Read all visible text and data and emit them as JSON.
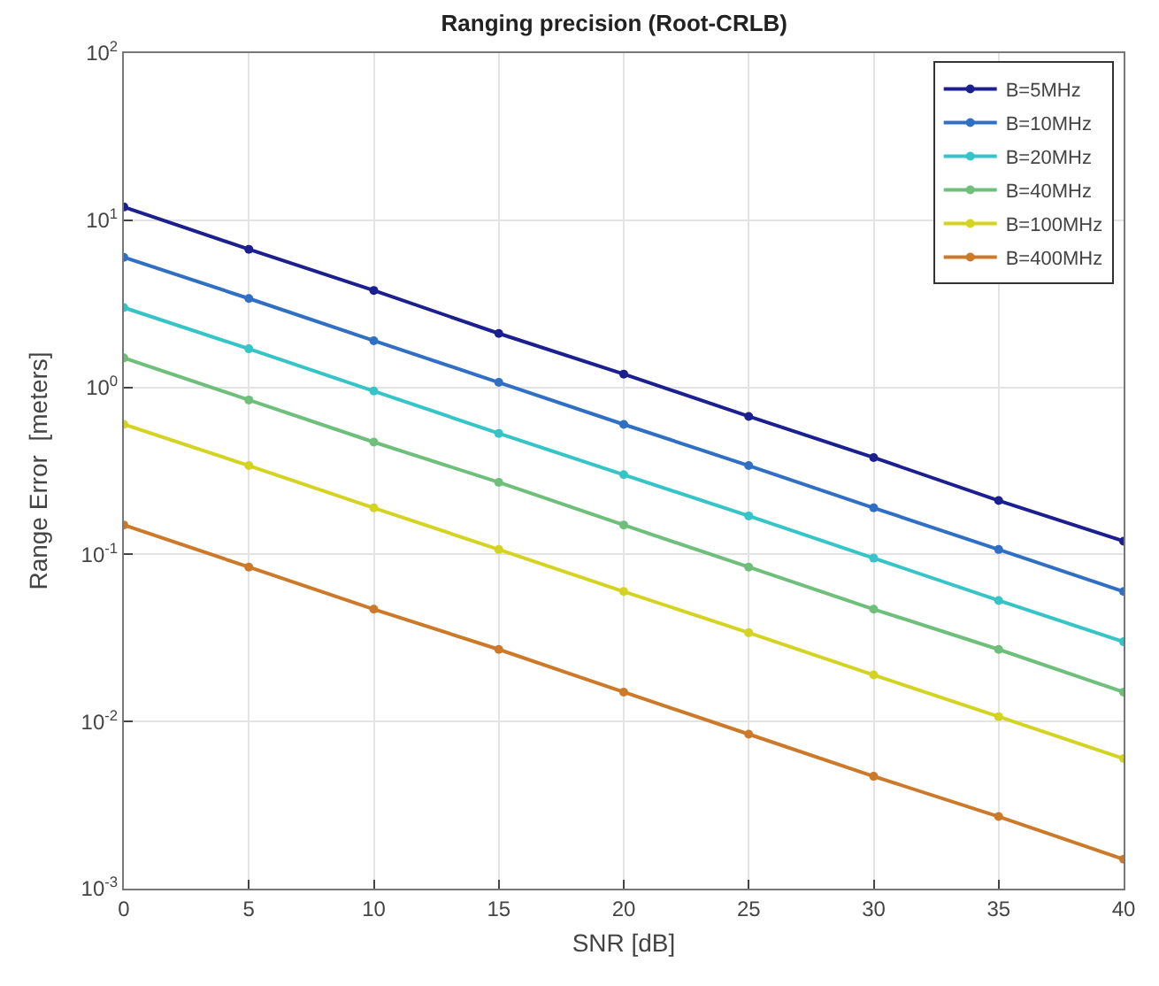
{
  "chart_data": {
    "type": "line",
    "title": "Ranging precision (Root-CRLB)",
    "xlabel": "SNR [dB]",
    "ylabel": "Range Error  [meters]",
    "x": [
      0,
      5,
      10,
      15,
      20,
      25,
      30,
      35,
      40
    ],
    "series": [
      {
        "name": "B=5MHz",
        "color": "#1c1f8f",
        "values": [
          12,
          6.7,
          3.8,
          2.1,
          1.2,
          0.67,
          0.38,
          0.21,
          0.12
        ]
      },
      {
        "name": "B=10MHz",
        "color": "#2f6fc4",
        "values": [
          6,
          3.4,
          1.9,
          1.07,
          0.6,
          0.34,
          0.19,
          0.107,
          0.06
        ]
      },
      {
        "name": "B=20MHz",
        "color": "#35c4c8",
        "values": [
          3,
          1.7,
          0.95,
          0.53,
          0.3,
          0.17,
          0.095,
          0.053,
          0.03
        ]
      },
      {
        "name": "B=40MHz",
        "color": "#6dbf7a",
        "values": [
          1.5,
          0.84,
          0.47,
          0.27,
          0.15,
          0.084,
          0.047,
          0.027,
          0.015
        ]
      },
      {
        "name": "B=100MHz",
        "color": "#d4d321",
        "values": [
          0.6,
          0.34,
          0.19,
          0.107,
          0.06,
          0.034,
          0.019,
          0.0107,
          0.006
        ]
      },
      {
        "name": "B=400MHz",
        "color": "#cc7a2a",
        "values": [
          0.15,
          0.084,
          0.047,
          0.027,
          0.015,
          0.0084,
          0.0047,
          0.0027,
          0.0015
        ]
      }
    ],
    "xlim": [
      0,
      40
    ],
    "xticks": [
      0,
      5,
      10,
      15,
      20,
      25,
      30,
      35,
      40
    ],
    "ylim": [
      0.001,
      100
    ],
    "yticks": [
      {
        "value": 0.001,
        "label": "10$^{-3}$"
      },
      {
        "value": 0.01,
        "label": "10$^{-2}$"
      },
      {
        "value": 0.1,
        "label": "10$^{-1}$"
      },
      {
        "value": 1,
        "label": "10$^{0}$"
      },
      {
        "value": 10,
        "label": "10$^{1}$"
      },
      {
        "value": 100,
        "label": "10$^{2}$"
      }
    ],
    "log": "y",
    "grid": true,
    "legend": "top right",
    "marker": "circle",
    "line_style": "solid"
  }
}
